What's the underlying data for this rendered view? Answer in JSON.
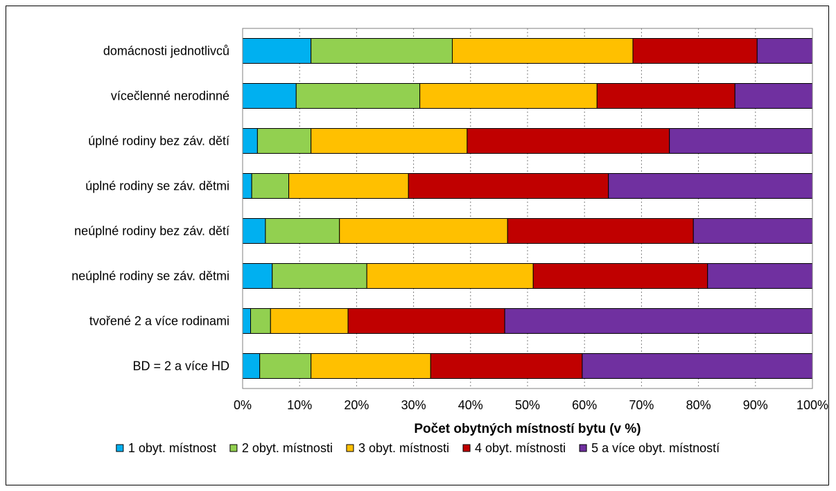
{
  "chart_data": {
    "type": "bar",
    "orientation": "horizontal",
    "stacked": "percent",
    "categories": [
      "domácnosti jednotlivců",
      "vícečlenné nerodinné",
      "úplné rodiny bez záv. dětí",
      "úplné rodiny se záv. dětmi",
      "neúplné rodiny bez záv. dětí",
      "neúplné rodiny se záv. dětmi",
      "tvořené 2 a více rodinami",
      "BD = 2 a více HD"
    ],
    "series": [
      {
        "name": "1 obyt. místnost",
        "color": "#00b0f0",
        "values": [
          12.0,
          9.4,
          2.6,
          1.6,
          4.0,
          5.2,
          1.4,
          3.0
        ]
      },
      {
        "name": "2 obyt. místnosti",
        "color": "#92d050",
        "values": [
          24.8,
          21.7,
          9.4,
          6.5,
          13.0,
          16.6,
          3.5,
          9.0
        ]
      },
      {
        "name": "3 obyt. místnosti",
        "color": "#ffc000",
        "values": [
          31.7,
          31.1,
          27.4,
          21.0,
          29.5,
          29.2,
          13.6,
          21.0
        ]
      },
      {
        "name": "4 obyt. místnosti",
        "color": "#c00000",
        "values": [
          21.8,
          24.2,
          35.5,
          35.1,
          32.6,
          30.6,
          27.5,
          26.6
        ]
      },
      {
        "name": "5 a více obyt. místností",
        "color": "#7030a0",
        "values": [
          9.7,
          13.6,
          25.1,
          35.8,
          20.9,
          18.4,
          54.0,
          40.4
        ]
      }
    ],
    "x_ticks": [
      "0%",
      "10%",
      "20%",
      "30%",
      "40%",
      "50%",
      "60%",
      "70%",
      "80%",
      "90%",
      "100%"
    ],
    "xlabel": "Počet obytných místností bytu (v %)",
    "xlim": [
      0,
      100
    ],
    "grid": "vertical dotted",
    "legend_position": "bottom"
  }
}
